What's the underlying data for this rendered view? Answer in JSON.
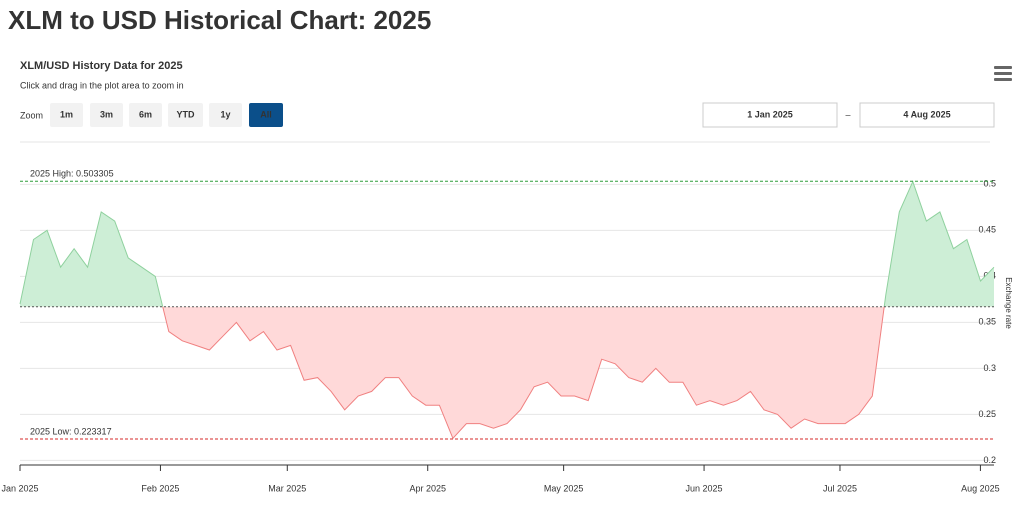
{
  "page_title": "XLM to USD Historical Chart: 2025",
  "chart_data": {
    "type": "area",
    "title": "XLM/USD History Data for 2025",
    "subtitle": "Click and drag in the plot area to zoom in",
    "zoom": {
      "label": "Zoom",
      "buttons": [
        "1m",
        "3m",
        "6m",
        "YTD",
        "1y",
        "All"
      ],
      "disabled": "1y",
      "selected": "All"
    },
    "range": {
      "from": "1 Jan 2025",
      "separator": "–",
      "to": "4 Aug 2025"
    },
    "y_axis_label": "Exchange rate",
    "xlim": [
      0,
      215
    ],
    "xticks": [
      {
        "value": 0,
        "label": "Jan 2025"
      },
      {
        "value": 31,
        "label": "Feb 2025"
      },
      {
        "value": 59,
        "label": "Mar 2025"
      },
      {
        "value": 90,
        "label": "Apr 2025"
      },
      {
        "value": 120,
        "label": "May 2025"
      },
      {
        "value": 151,
        "label": "Jun 2025"
      },
      {
        "value": 181,
        "label": "Jul 2025"
      },
      {
        "value": 212,
        "label": "Aug 2025"
      }
    ],
    "ylim": [
      0.195,
      0.546
    ],
    "yticks": [
      0.2,
      0.25,
      0.3,
      0.35,
      0.4,
      0.45,
      0.5
    ],
    "grid": true,
    "baseline": 0.367,
    "above_color": "#8fd19e",
    "above_fill": "#cdeed6",
    "below_color": "#f08080",
    "below_fill": "#ffd9d9",
    "values": [
      0.37,
      0.44,
      0.45,
      0.41,
      0.43,
      0.41,
      0.47,
      0.46,
      0.42,
      0.41,
      0.4,
      0.34,
      0.33,
      0.325,
      0.32,
      0.335,
      0.35,
      0.33,
      0.34,
      0.32,
      0.325,
      0.287,
      0.29,
      0.275,
      0.255,
      0.27,
      0.275,
      0.29,
      0.29,
      0.27,
      0.26,
      0.26,
      0.224,
      0.24,
      0.24,
      0.235,
      0.24,
      0.255,
      0.28,
      0.285,
      0.27,
      0.27,
      0.265,
      0.31,
      0.305,
      0.29,
      0.285,
      0.3,
      0.285,
      0.285,
      0.26,
      0.265,
      0.26,
      0.265,
      0.275,
      0.255,
      0.25,
      0.235,
      0.245,
      0.24,
      0.24,
      0.24,
      0.25,
      0.27,
      0.38,
      0.47,
      0.503,
      0.46,
      0.47,
      0.43,
      0.44,
      0.395,
      0.41
    ],
    "high": {
      "label": "2025 High: 0.503305",
      "value": 0.503305,
      "color": "#2e9e3a"
    },
    "low": {
      "label": "2025 Low: 0.223317",
      "value": 0.223317,
      "color": "#d42a2a"
    }
  }
}
